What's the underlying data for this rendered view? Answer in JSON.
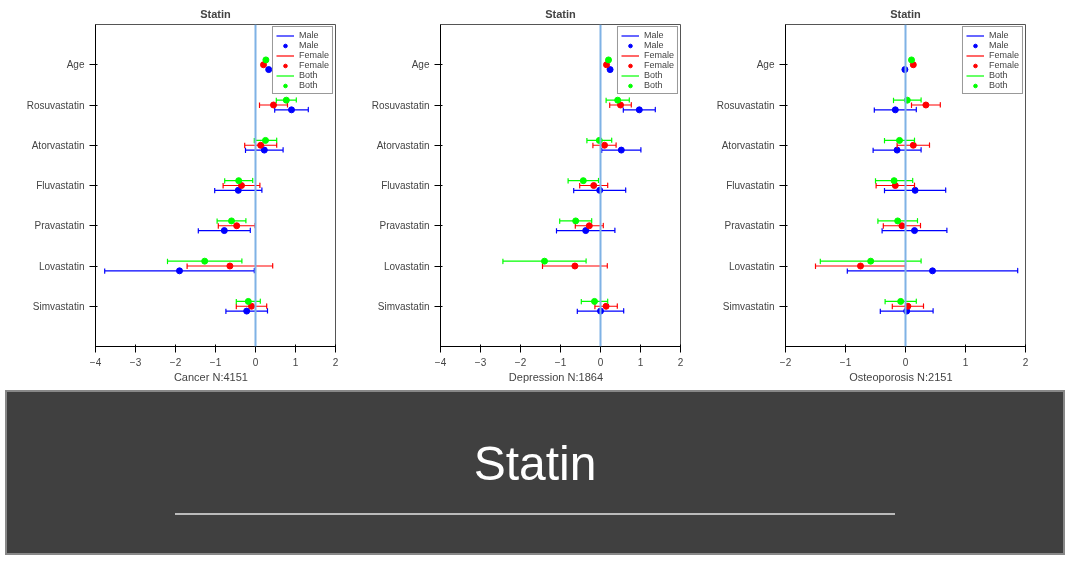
{
  "chart_data": [
    {
      "type": "scatter",
      "orientation": "horizontal",
      "title": "Statin",
      "xlabel": "Cancer    N:4151",
      "categories": [
        "Age",
        "Rosuvastatin",
        "Atorvastatin",
        "Fluvastatin",
        "Pravastatin",
        "Lovastatin",
        "Simvastatin"
      ],
      "xlim": [
        -4,
        2
      ],
      "xticks": [
        -4,
        -3,
        -2,
        -1,
        0,
        1,
        2
      ],
      "marker": "circle",
      "legend": "top right",
      "grid": false,
      "ref_lines": [
        {
          "axis": "x",
          "value": 0,
          "color": "#7fb2e5"
        }
      ],
      "series": [
        {
          "name": "Male",
          "color": "#0000ff",
          "values": [
            0.33,
            0.9,
            0.22,
            -0.43,
            -0.78,
            -1.9,
            -0.22
          ],
          "errors": [
            null,
            0.42,
            0.47,
            0.59,
            0.65,
            1.87,
            0.52
          ]
        },
        {
          "name": "Female",
          "color": "#ff0000",
          "values": [
            0.2,
            0.45,
            0.13,
            -0.35,
            -0.47,
            -0.64,
            -0.1
          ],
          "errors": [
            null,
            0.35,
            0.4,
            0.46,
            0.46,
            1.07,
            0.38
          ]
        },
        {
          "name": "Both",
          "color": "#00ff00",
          "values": [
            0.26,
            0.77,
            0.25,
            -0.42,
            -0.6,
            -1.27,
            -0.18
          ],
          "errors": [
            null,
            0.25,
            0.28,
            0.35,
            0.36,
            0.93,
            0.3
          ]
        }
      ]
    },
    {
      "type": "scatter",
      "orientation": "horizontal",
      "title": "Statin",
      "xlabel": "Depression    N:1864",
      "categories": [
        "Age",
        "Rosuvastatin",
        "Atorvastatin",
        "Fluvastatin",
        "Pravastatin",
        "Lovastatin",
        "Simvastatin"
      ],
      "xlim": [
        -4,
        2
      ],
      "xticks": [
        -4,
        -3,
        -2,
        -1,
        0,
        1,
        2
      ],
      "marker": "circle",
      "legend": "top right",
      "grid": false,
      "ref_lines": [
        {
          "axis": "x",
          "value": 0,
          "color": "#7fb2e5"
        }
      ],
      "series": [
        {
          "name": "Male",
          "color": "#0000ff",
          "values": [
            0.24,
            0.97,
            0.52,
            -0.02,
            -0.37,
            null,
            0.0
          ],
          "errors": [
            null,
            0.4,
            0.49,
            0.65,
            0.73,
            null,
            0.58
          ]
        },
        {
          "name": "Female",
          "color": "#ff0000",
          "values": [
            0.15,
            0.5,
            0.1,
            -0.17,
            -0.28,
            -0.64,
            0.14
          ],
          "errors": [
            null,
            0.27,
            0.29,
            0.35,
            0.35,
            0.81,
            0.28
          ]
        },
        {
          "name": "Both",
          "color": "#00ff00",
          "values": [
            0.2,
            0.43,
            -0.03,
            -0.43,
            -0.62,
            -1.4,
            -0.15
          ],
          "errors": [
            null,
            0.29,
            0.31,
            0.38,
            0.4,
            1.04,
            0.33
          ]
        }
      ]
    },
    {
      "type": "scatter",
      "orientation": "horizontal",
      "title": "Statin",
      "xlabel": "Osteoporosis    N:2151",
      "categories": [
        "Age",
        "Rosuvastatin",
        "Atorvastatin",
        "Fluvastatin",
        "Pravastatin",
        "Lovastatin",
        "Simvastatin"
      ],
      "xlim": [
        -2,
        2
      ],
      "xticks": [
        -2,
        -1,
        0,
        1,
        2
      ],
      "marker": "circle",
      "legend": "top right",
      "grid": false,
      "ref_lines": [
        {
          "axis": "x",
          "value": 0,
          "color": "#7fb2e5"
        }
      ],
      "series": [
        {
          "name": "Male",
          "color": "#0000ff",
          "values": [
            -0.01,
            -0.17,
            -0.14,
            0.16,
            0.15,
            0.45,
            0.02
          ],
          "errors": [
            null,
            0.35,
            0.4,
            0.51,
            0.54,
            1.42,
            0.44
          ]
        },
        {
          "name": "Female",
          "color": "#ff0000",
          "values": [
            0.13,
            0.34,
            0.13,
            -0.17,
            -0.06,
            -0.75,
            0.04
          ],
          "errors": [
            null,
            0.24,
            0.27,
            0.32,
            0.31,
            0.75,
            0.26
          ]
        },
        {
          "name": "Both",
          "color": "#00ff00",
          "values": [
            0.1,
            0.03,
            -0.1,
            -0.19,
            -0.13,
            -0.58,
            -0.08
          ],
          "errors": [
            null,
            0.23,
            0.25,
            0.31,
            0.33,
            0.84,
            0.26
          ]
        }
      ]
    },
    {
      "type": "other",
      "title": "Statin"
    }
  ]
}
